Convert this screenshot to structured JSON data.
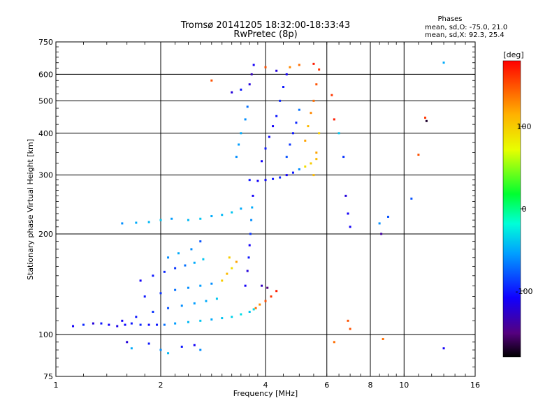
{
  "chart_data": {
    "type": "scatter",
    "title": "Tromsø 20141205 18:32:00-18:33:43",
    "subtitle": "RwPretec (8p)",
    "xlabel": "Frequency [MHz]",
    "ylabel": "Stationary phase Virtual Height [km]",
    "xscale": "log",
    "yscale": "log",
    "xlim": [
      1,
      16
    ],
    "ylim": [
      75,
      750
    ],
    "x_ticks": [
      1,
      2,
      4,
      6,
      8,
      10,
      16
    ],
    "x_grid": [
      2,
      4,
      6,
      8,
      10
    ],
    "y_ticks": [
      75,
      100,
      200,
      300,
      400,
      500,
      600,
      750
    ],
    "y_grid": [
      100,
      200,
      300,
      400,
      500,
      600
    ],
    "grid": true,
    "phase_info": {
      "heading": "Phases",
      "line_o": "mean, sd,O: -75.0, 21.0",
      "line_x": "mean, sd,X:  92.3, 25.4"
    },
    "colorbar": {
      "label": "[deg]",
      "range": [
        -180,
        180
      ],
      "ticks": [
        100,
        0,
        -100
      ],
      "colormap": "rainbow"
    },
    "series": [
      {
        "points": [
          {
            "f": 1.12,
            "h": 106,
            "p": -110
          },
          {
            "f": 1.2,
            "h": 107,
            "p": -95
          },
          {
            "f": 1.28,
            "h": 108,
            "p": -120
          },
          {
            "f": 1.35,
            "h": 108,
            "p": -100
          },
          {
            "f": 1.42,
            "h": 107,
            "p": -110
          },
          {
            "f": 1.5,
            "h": 106,
            "p": -115
          },
          {
            "f": 1.58,
            "h": 107,
            "p": -105
          },
          {
            "f": 1.65,
            "h": 108,
            "p": -100
          },
          {
            "f": 1.75,
            "h": 107,
            "p": -95
          },
          {
            "f": 1.85,
            "h": 107,
            "p": -105
          },
          {
            "f": 1.95,
            "h": 107,
            "p": -100
          },
          {
            "f": 2.05,
            "h": 107,
            "p": -70
          },
          {
            "f": 2.2,
            "h": 108,
            "p": -55
          },
          {
            "f": 2.4,
            "h": 109,
            "p": -45
          },
          {
            "f": 2.6,
            "h": 110,
            "p": -40
          },
          {
            "f": 2.8,
            "h": 111,
            "p": -50
          },
          {
            "f": 3.0,
            "h": 112,
            "p": -40
          },
          {
            "f": 3.2,
            "h": 113,
            "p": -35
          },
          {
            "f": 3.4,
            "h": 115,
            "p": -30
          },
          {
            "f": 3.6,
            "h": 117,
            "p": -40
          },
          {
            "f": 3.7,
            "h": 119,
            "p": -30
          },
          {
            "f": 1.55,
            "h": 110,
            "p": -110
          },
          {
            "f": 1.7,
            "h": 113,
            "p": -100
          },
          {
            "f": 1.9,
            "h": 117,
            "p": -90
          },
          {
            "f": 2.1,
            "h": 120,
            "p": -80
          },
          {
            "f": 2.3,
            "h": 122,
            "p": -60
          },
          {
            "f": 2.5,
            "h": 124,
            "p": -55
          },
          {
            "f": 2.7,
            "h": 126,
            "p": -50
          },
          {
            "f": 2.9,
            "h": 128,
            "p": -40
          },
          {
            "f": 1.8,
            "h": 130,
            "p": -100
          },
          {
            "f": 2.0,
            "h": 133,
            "p": -90
          },
          {
            "f": 2.2,
            "h": 136,
            "p": -70
          },
          {
            "f": 2.4,
            "h": 138,
            "p": -60
          },
          {
            "f": 2.6,
            "h": 140,
            "p": -55
          },
          {
            "f": 2.8,
            "h": 142,
            "p": -60
          },
          {
            "f": 1.75,
            "h": 145,
            "p": -110
          },
          {
            "f": 1.9,
            "h": 150,
            "p": -100
          },
          {
            "f": 2.05,
            "h": 154,
            "p": -95
          },
          {
            "f": 2.2,
            "h": 158,
            "p": -90
          },
          {
            "f": 2.35,
            "h": 161,
            "p": -70
          },
          {
            "f": 2.5,
            "h": 164,
            "p": -50
          },
          {
            "f": 2.65,
            "h": 168,
            "p": -40
          },
          {
            "f": 2.1,
            "h": 170,
            "p": -60
          },
          {
            "f": 2.25,
            "h": 175,
            "p": -50
          },
          {
            "f": 2.45,
            "h": 180,
            "p": -60
          },
          {
            "f": 2.6,
            "h": 190,
            "p": -80
          },
          {
            "f": 3.0,
            "h": 145,
            "p": 100
          },
          {
            "f": 3.1,
            "h": 152,
            "p": 110
          },
          {
            "f": 3.2,
            "h": 158,
            "p": 90
          },
          {
            "f": 3.3,
            "h": 165,
            "p": 120
          },
          {
            "f": 3.15,
            "h": 170,
            "p": 100
          },
          {
            "f": 3.5,
            "h": 140,
            "p": -110
          },
          {
            "f": 3.55,
            "h": 155,
            "p": -120
          },
          {
            "f": 3.58,
            "h": 170,
            "p": -100
          },
          {
            "f": 3.6,
            "h": 185,
            "p": -110
          },
          {
            "f": 3.62,
            "h": 200,
            "p": -90
          },
          {
            "f": 3.64,
            "h": 220,
            "p": -60
          },
          {
            "f": 3.66,
            "h": 240,
            "p": -50
          },
          {
            "f": 3.68,
            "h": 260,
            "p": -110
          },
          {
            "f": 3.75,
            "h": 120,
            "p": 140
          },
          {
            "f": 3.85,
            "h": 123,
            "p": 130
          },
          {
            "f": 4.0,
            "h": 126,
            "p": 150
          },
          {
            "f": 4.15,
            "h": 130,
            "p": 160
          },
          {
            "f": 4.3,
            "h": 135,
            "p": 170
          },
          {
            "f": 3.9,
            "h": 140,
            "p": -130
          },
          {
            "f": 4.05,
            "h": 138,
            "p": -150
          },
          {
            "f": 1.55,
            "h": 215,
            "p": -60
          },
          {
            "f": 1.7,
            "h": 216,
            "p": -50
          },
          {
            "f": 1.85,
            "h": 217,
            "p": -45
          },
          {
            "f": 2.0,
            "h": 220,
            "p": -40
          },
          {
            "f": 2.15,
            "h": 222,
            "p": -55
          },
          {
            "f": 2.4,
            "h": 220,
            "p": -45
          },
          {
            "f": 2.6,
            "h": 222,
            "p": -40
          },
          {
            "f": 2.8,
            "h": 226,
            "p": -50
          },
          {
            "f": 3.0,
            "h": 228,
            "p": -45
          },
          {
            "f": 3.2,
            "h": 232,
            "p": -40
          },
          {
            "f": 3.4,
            "h": 238,
            "p": -50
          },
          {
            "f": 3.6,
            "h": 290,
            "p": -100
          },
          {
            "f": 3.8,
            "h": 288,
            "p": -110
          },
          {
            "f": 4.0,
            "h": 290,
            "p": -105
          },
          {
            "f": 4.2,
            "h": 292,
            "p": -100
          },
          {
            "f": 4.4,
            "h": 295,
            "p": -95
          },
          {
            "f": 4.6,
            "h": 300,
            "p": -110
          },
          {
            "f": 4.8,
            "h": 305,
            "p": -100
          },
          {
            "f": 5.0,
            "h": 312,
            "p": -60
          },
          {
            "f": 5.2,
            "h": 318,
            "p": 90
          },
          {
            "f": 5.4,
            "h": 325,
            "p": 100
          },
          {
            "f": 5.6,
            "h": 335,
            "p": 110
          },
          {
            "f": 3.3,
            "h": 340,
            "p": -60
          },
          {
            "f": 3.35,
            "h": 370,
            "p": -55
          },
          {
            "f": 3.4,
            "h": 400,
            "p": -50
          },
          {
            "f": 3.5,
            "h": 440,
            "p": -60
          },
          {
            "f": 3.55,
            "h": 480,
            "p": -70
          },
          {
            "f": 3.9,
            "h": 330,
            "p": -110
          },
          {
            "f": 4.0,
            "h": 360,
            "p": -100
          },
          {
            "f": 4.1,
            "h": 390,
            "p": -105
          },
          {
            "f": 4.2,
            "h": 420,
            "p": -110
          },
          {
            "f": 4.3,
            "h": 450,
            "p": -100
          },
          {
            "f": 4.4,
            "h": 500,
            "p": -95
          },
          {
            "f": 4.5,
            "h": 550,
            "p": -100
          },
          {
            "f": 4.6,
            "h": 600,
            "p": -110
          },
          {
            "f": 4.6,
            "h": 340,
            "p": -80
          },
          {
            "f": 4.7,
            "h": 370,
            "p": -90
          },
          {
            "f": 4.8,
            "h": 400,
            "p": -100
          },
          {
            "f": 4.9,
            "h": 430,
            "p": -95
          },
          {
            "f": 5.0,
            "h": 470,
            "p": -70
          },
          {
            "f": 5.2,
            "h": 380,
            "p": 120
          },
          {
            "f": 5.3,
            "h": 420,
            "p": 110
          },
          {
            "f": 5.4,
            "h": 460,
            "p": 130
          },
          {
            "f": 5.5,
            "h": 500,
            "p": 140
          },
          {
            "f": 5.6,
            "h": 560,
            "p": 150
          },
          {
            "f": 5.7,
            "h": 620,
            "p": 160
          },
          {
            "f": 5.5,
            "h": 300,
            "p": 110
          },
          {
            "f": 5.6,
            "h": 350,
            "p": 120
          },
          {
            "f": 5.7,
            "h": 400,
            "p": 100
          },
          {
            "f": 3.6,
            "h": 560,
            "p": -120
          },
          {
            "f": 3.65,
            "h": 600,
            "p": -130
          },
          {
            "f": 3.7,
            "h": 640,
            "p": -110
          },
          {
            "f": 3.4,
            "h": 540,
            "p": -100
          },
          {
            "f": 3.2,
            "h": 530,
            "p": -120
          },
          {
            "f": 2.8,
            "h": 575,
            "p": 150
          },
          {
            "f": 4.0,
            "h": 630,
            "p": 150
          },
          {
            "f": 4.3,
            "h": 615,
            "p": -120
          },
          {
            "f": 4.7,
            "h": 630,
            "p": 130
          },
          {
            "f": 5.0,
            "h": 640,
            "p": 140
          },
          {
            "f": 5.5,
            "h": 645,
            "p": 170
          },
          {
            "f": 6.2,
            "h": 520,
            "p": 160
          },
          {
            "f": 6.3,
            "h": 440,
            "p": 170
          },
          {
            "f": 6.5,
            "h": 400,
            "p": -40
          },
          {
            "f": 6.7,
            "h": 340,
            "p": -90
          },
          {
            "f": 6.8,
            "h": 260,
            "p": -120
          },
          {
            "f": 6.9,
            "h": 230,
            "p": -110
          },
          {
            "f": 7.0,
            "h": 210,
            "p": -110
          },
          {
            "f": 6.9,
            "h": 110,
            "p": 150
          },
          {
            "f": 7.0,
            "h": 104,
            "p": 150
          },
          {
            "f": 6.3,
            "h": 95,
            "p": 140
          },
          {
            "f": 8.6,
            "h": 200,
            "p": -140
          },
          {
            "f": 8.5,
            "h": 215,
            "p": -60
          },
          {
            "f": 9.0,
            "h": 225,
            "p": -80
          },
          {
            "f": 10.5,
            "h": 255,
            "p": -80
          },
          {
            "f": 11.0,
            "h": 345,
            "p": 150
          },
          {
            "f": 11.5,
            "h": 445,
            "p": 160
          },
          {
            "f": 11.6,
            "h": 435,
            "p": -170
          },
          {
            "f": 13.0,
            "h": 650,
            "p": -50
          },
          {
            "f": 13.0,
            "h": 91,
            "p": -110
          },
          {
            "f": 8.7,
            "h": 97,
            "p": 140
          },
          {
            "f": 1.6,
            "h": 95,
            "p": -120
          },
          {
            "f": 1.65,
            "h": 91,
            "p": -50
          },
          {
            "f": 1.85,
            "h": 94,
            "p": -100
          },
          {
            "f": 2.0,
            "h": 90,
            "p": -60
          },
          {
            "f": 2.1,
            "h": 88,
            "p": -45
          },
          {
            "f": 2.3,
            "h": 92,
            "p": -100
          },
          {
            "f": 2.5,
            "h": 93,
            "p": -110
          },
          {
            "f": 2.6,
            "h": 90,
            "p": -60
          }
        ]
      }
    ]
  }
}
